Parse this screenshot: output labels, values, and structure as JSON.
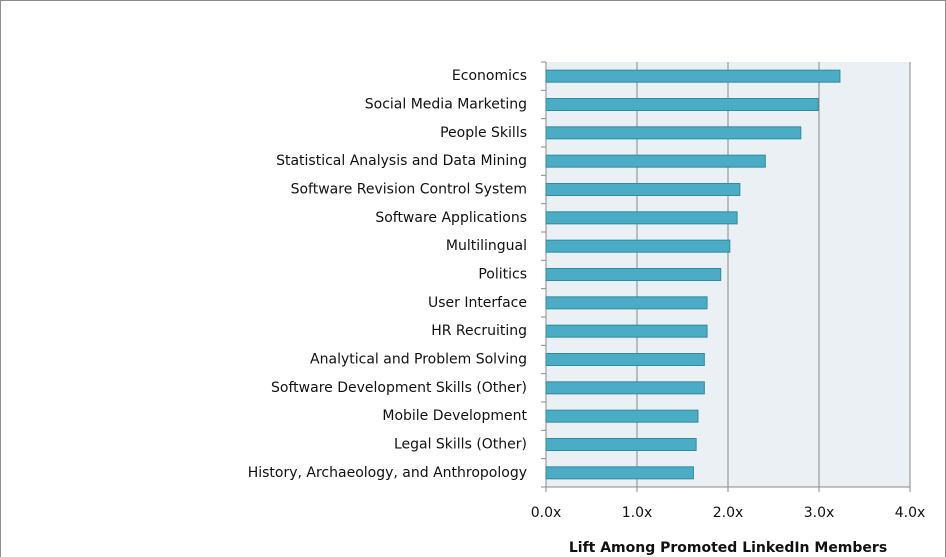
{
  "chart_data": {
    "type": "bar",
    "orientation": "horizontal",
    "categories": [
      "Economics",
      "Social Media Marketing",
      "People Skills",
      "Statistical Analysis and Data Mining",
      "Software Revision Control System",
      "Software Applications",
      "Multilingual",
      "Politics",
      "User Interface",
      "HR Recruiting",
      "Analytical and Problem Solving",
      "Software Development Skills (Other)",
      "Mobile Development",
      "Legal Skills (Other)",
      "History, Archaeology, and Anthropology"
    ],
    "values": [
      3.23,
      2.99,
      2.8,
      2.41,
      2.13,
      2.1,
      2.02,
      1.92,
      1.77,
      1.77,
      1.74,
      1.74,
      1.67,
      1.65,
      1.62
    ],
    "color": "#4bacc6",
    "xlim": [
      0,
      4
    ],
    "xticks": [
      {
        "value": 0,
        "label": "0.0x"
      },
      {
        "value": 1,
        "label": "1.0x"
      },
      {
        "value": 2,
        "label": "2.0x"
      },
      {
        "value": 3,
        "label": "3.0x"
      },
      {
        "value": 4,
        "label": "4.0x"
      }
    ],
    "xlabel": "Lift Among Promoted LinkedIn Members",
    "grid": true
  }
}
